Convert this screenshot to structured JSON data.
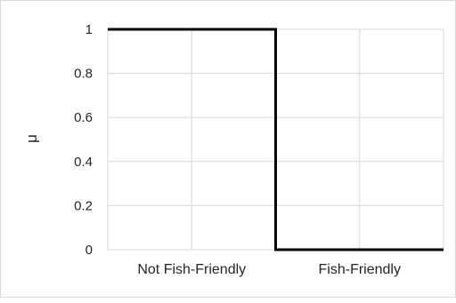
{
  "chart_data": {
    "type": "line",
    "title": "",
    "xlabel": "",
    "ylabel": "μ",
    "ylim": [
      0,
      1
    ],
    "yticks": [
      "0",
      "0.2",
      "0.4",
      "0.6",
      "0.8",
      "1"
    ],
    "categories": [
      "Not Fish-Friendly",
      "Fish-Friendly"
    ],
    "grid": true,
    "legend": "none",
    "series": [
      {
        "x": [
          0,
          1,
          1,
          2
        ],
        "y": [
          1,
          1,
          0,
          0
        ],
        "color": "#000000"
      }
    ]
  }
}
